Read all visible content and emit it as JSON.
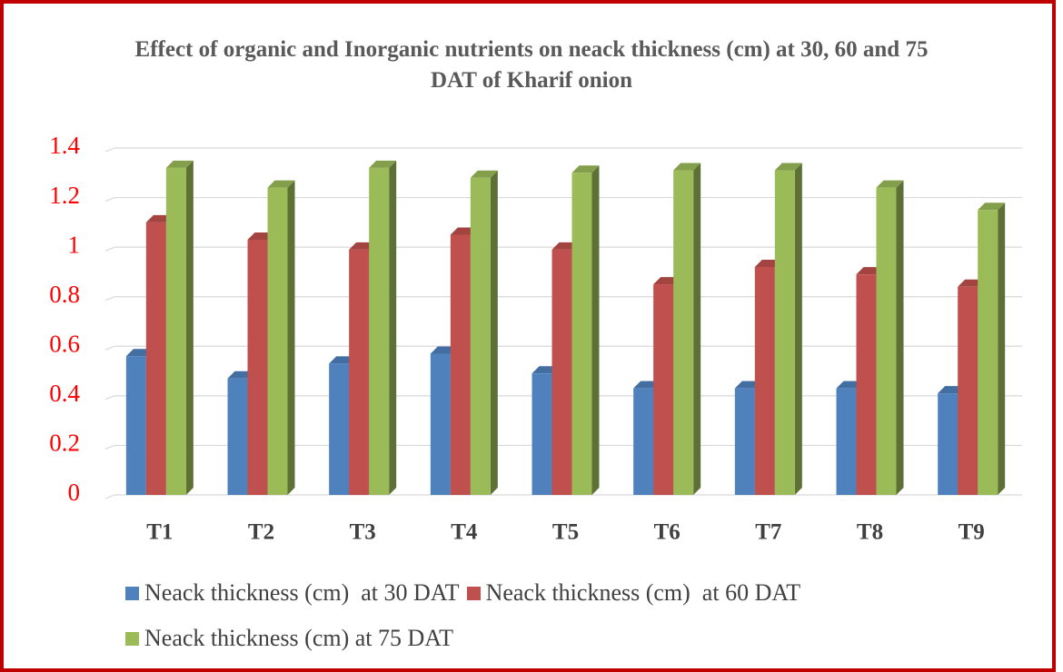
{
  "chart_data": {
    "type": "bar",
    "title": "Effect of organic and Inorganic nutrients on neack thickness (cm) at 30, 60 and 75 DAT of Kharif onion",
    "categories": [
      "T1",
      "T2",
      "T3",
      "T4",
      "T5",
      "T6",
      "T7",
      "T8",
      "T9"
    ],
    "series": [
      {
        "name": "Neack thickness (cm)  at 30 DAT",
        "color": "#4f81bd",
        "values": [
          0.56,
          0.47,
          0.53,
          0.57,
          0.49,
          0.43,
          0.43,
          0.43,
          0.41
        ]
      },
      {
        "name": "Neack thickness (cm)  at 60 DAT",
        "color": "#c0504d",
        "values": [
          1.1,
          1.03,
          0.99,
          1.05,
          0.99,
          0.85,
          0.92,
          0.89,
          0.84
        ]
      },
      {
        "name": "Neack thickness (cm) at 75 DAT",
        "color": "#9bbb59",
        "values": [
          1.32,
          1.24,
          1.32,
          1.28,
          1.3,
          1.31,
          1.31,
          1.24,
          1.15
        ]
      }
    ],
    "ylim": [
      0,
      1.4
    ],
    "yticks": [
      0,
      0.2,
      0.4,
      0.6,
      0.8,
      1,
      1.2,
      1.4
    ],
    "grid": true,
    "legend": "bottom"
  }
}
